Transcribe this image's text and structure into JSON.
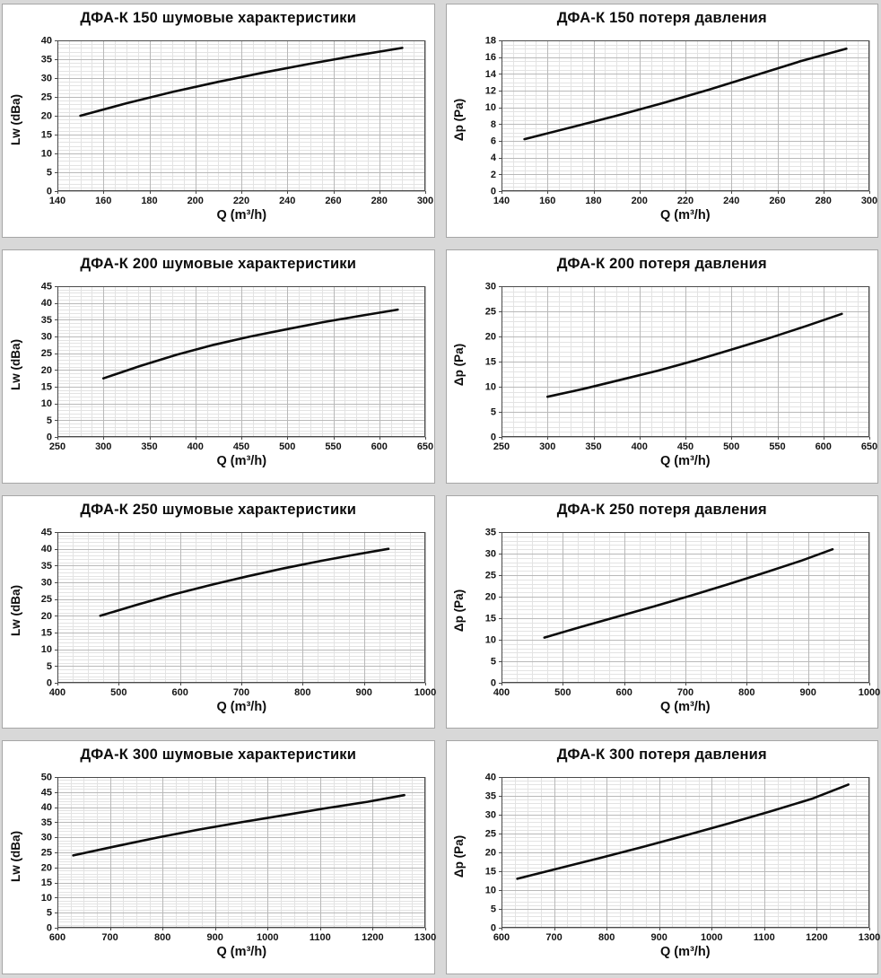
{
  "page": {
    "background": "#d8d8d8",
    "panel_background": "#ffffff",
    "panel_border": "#a6a6a6",
    "grid_minor_color": "#e3e3e3",
    "grid_major_color": "#b9b9b9",
    "axis_color": "#4a4a4a",
    "text_color": "#0d0d0d"
  },
  "chart_data": [
    {
      "name": "dfa-k-150-noise",
      "type": "line",
      "title": "ДФА-К 150 шумовые характеристики",
      "xlabel": "Q (m³/h)",
      "ylabel": "Lw (dBa)",
      "xlim": [
        140,
        300
      ],
      "ylim": [
        0,
        40
      ],
      "xmajor": 20,
      "xminor": 5,
      "ymajor": 5,
      "yminor": 1,
      "x_ticks": [
        140,
        160,
        180,
        200,
        220,
        240,
        260,
        280,
        300
      ],
      "y_ticks": [
        0,
        5,
        10,
        15,
        20,
        25,
        30,
        35,
        40
      ],
      "grid": true,
      "legend": false,
      "line_color": "#0b0b0b",
      "points": [
        [
          150,
          20
        ],
        [
          170,
          23.3
        ],
        [
          190,
          26.3
        ],
        [
          210,
          29
        ],
        [
          230,
          31.5
        ],
        [
          250,
          33.8
        ],
        [
          270,
          36
        ],
        [
          290,
          38
        ]
      ]
    },
    {
      "name": "dfa-k-150-pressure",
      "type": "line",
      "title": "ДФА-К 150 потеря давления",
      "xlabel": "Q (m³/h)",
      "ylabel": "Δp (Pa)",
      "xlim": [
        140,
        300
      ],
      "ylim": [
        0,
        18
      ],
      "xmajor": 20,
      "xminor": 5,
      "ymajor": 2,
      "yminor": 0.5,
      "x_ticks": [
        140,
        160,
        180,
        200,
        220,
        240,
        260,
        280,
        300
      ],
      "y_ticks": [
        0,
        2,
        4,
        6,
        8,
        10,
        12,
        14,
        16,
        18
      ],
      "grid": true,
      "legend": false,
      "line_color": "#0b0b0b",
      "points": [
        [
          150,
          6.2
        ],
        [
          170,
          7.6
        ],
        [
          190,
          9
        ],
        [
          210,
          10.5
        ],
        [
          230,
          12.1
        ],
        [
          250,
          13.8
        ],
        [
          270,
          15.5
        ],
        [
          290,
          17
        ]
      ]
    },
    {
      "name": "dfa-k-200-noise",
      "type": "line",
      "title": "ДФА-К 200 шумовые характеристики",
      "xlabel": "Q (m³/h)",
      "ylabel": "Lw (dBa)",
      "xlim": [
        250,
        650
      ],
      "ylim": [
        0,
        45
      ],
      "xmajor": 50,
      "xminor": 12.5,
      "ymajor": 5,
      "yminor": 1,
      "x_ticks": [
        250,
        300,
        350,
        400,
        450,
        500,
        550,
        600,
        650
      ],
      "y_ticks": [
        0,
        5,
        10,
        15,
        20,
        25,
        30,
        35,
        40,
        45
      ],
      "grid": true,
      "legend": false,
      "line_color": "#0b0b0b",
      "points": [
        [
          300,
          17.5
        ],
        [
          340,
          21.2
        ],
        [
          380,
          24.6
        ],
        [
          420,
          27.5
        ],
        [
          460,
          30
        ],
        [
          500,
          32.2
        ],
        [
          540,
          34.3
        ],
        [
          580,
          36.2
        ],
        [
          620,
          38
        ]
      ]
    },
    {
      "name": "dfa-k-200-pressure",
      "type": "line",
      "title": "ДФА-К 200 потеря давления",
      "xlabel": "Q (m³/h)",
      "ylabel": "Δp (Pa)",
      "xlim": [
        250,
        650
      ],
      "ylim": [
        0,
        30
      ],
      "xmajor": 50,
      "xminor": 12.5,
      "ymajor": 5,
      "yminor": 1,
      "x_ticks": [
        250,
        300,
        350,
        400,
        450,
        500,
        550,
        600,
        650
      ],
      "y_ticks": [
        0,
        5,
        10,
        15,
        20,
        25,
        30
      ],
      "grid": true,
      "legend": false,
      "line_color": "#0b0b0b",
      "points": [
        [
          300,
          8
        ],
        [
          340,
          9.6
        ],
        [
          380,
          11.4
        ],
        [
          420,
          13.2
        ],
        [
          460,
          15.2
        ],
        [
          500,
          17.4
        ],
        [
          540,
          19.6
        ],
        [
          580,
          22
        ],
        [
          620,
          24.5
        ]
      ]
    },
    {
      "name": "dfa-k-250-noise",
      "type": "line",
      "title": "ДФА-К 250 шумовые характеристики",
      "xlabel": "Q (m³/h)",
      "ylabel": "Lw (dBa)",
      "xlim": [
        400,
        1000
      ],
      "ylim": [
        0,
        45
      ],
      "xmajor": 100,
      "xminor": 25,
      "ymajor": 5,
      "yminor": 1,
      "x_ticks": [
        400,
        500,
        600,
        700,
        800,
        900,
        1000
      ],
      "y_ticks": [
        0,
        5,
        10,
        15,
        20,
        25,
        30,
        35,
        40,
        45
      ],
      "grid": true,
      "legend": false,
      "line_color": "#0b0b0b",
      "points": [
        [
          470,
          20
        ],
        [
          530,
          23.3
        ],
        [
          590,
          26.4
        ],
        [
          650,
          29.2
        ],
        [
          710,
          31.8
        ],
        [
          770,
          34.2
        ],
        [
          830,
          36.4
        ],
        [
          890,
          38.4
        ],
        [
          940,
          40
        ]
      ]
    },
    {
      "name": "dfa-k-250-pressure",
      "type": "line",
      "title": "ДФА-К 250 потеря давления",
      "xlabel": "Q (m³/h)",
      "ylabel": "Δp (Pa)",
      "xlim": [
        400,
        1000
      ],
      "ylim": [
        0,
        35
      ],
      "xmajor": 100,
      "xminor": 25,
      "ymajor": 5,
      "yminor": 1,
      "x_ticks": [
        400,
        500,
        600,
        700,
        800,
        900,
        1000
      ],
      "y_ticks": [
        0,
        5,
        10,
        15,
        20,
        25,
        30,
        35
      ],
      "grid": true,
      "legend": false,
      "line_color": "#0b0b0b",
      "points": [
        [
          470,
          10.5
        ],
        [
          530,
          13
        ],
        [
          590,
          15.4
        ],
        [
          650,
          17.8
        ],
        [
          710,
          20.3
        ],
        [
          770,
          22.9
        ],
        [
          830,
          25.6
        ],
        [
          890,
          28.4
        ],
        [
          940,
          31
        ]
      ]
    },
    {
      "name": "dfa-k-300-noise",
      "type": "line",
      "title": "ДФА-К 300 шумовые характеристики",
      "xlabel": "Q (m³/h)",
      "ylabel": "Lw (dBa)",
      "xlim": [
        600,
        1300
      ],
      "ylim": [
        0,
        50
      ],
      "xmajor": 100,
      "xminor": 25,
      "ymajor": 5,
      "yminor": 1,
      "x_ticks": [
        600,
        700,
        800,
        900,
        1000,
        1100,
        1200,
        1300
      ],
      "y_ticks": [
        0,
        5,
        10,
        15,
        20,
        25,
        30,
        35,
        40,
        45,
        50
      ],
      "grid": true,
      "legend": false,
      "line_color": "#0b0b0b",
      "points": [
        [
          630,
          24
        ],
        [
          710,
          27
        ],
        [
          790,
          29.9
        ],
        [
          870,
          32.6
        ],
        [
          950,
          35
        ],
        [
          1030,
          37.3
        ],
        [
          1110,
          39.6
        ],
        [
          1190,
          41.8
        ],
        [
          1260,
          44
        ]
      ]
    },
    {
      "name": "dfa-k-300-pressure",
      "type": "line",
      "title": "ДФА-К 300 потеря давления",
      "xlabel": "Q (m³/h)",
      "ylabel": "Δp (Pa)",
      "xlim": [
        600,
        1300
      ],
      "ylim": [
        0,
        40
      ],
      "xmajor": 100,
      "xminor": 25,
      "ymajor": 5,
      "yminor": 1,
      "x_ticks": [
        600,
        700,
        800,
        900,
        1000,
        1100,
        1200,
        1300
      ],
      "y_ticks": [
        0,
        5,
        10,
        15,
        20,
        25,
        30,
        35,
        40
      ],
      "grid": true,
      "legend": false,
      "line_color": "#0b0b0b",
      "points": [
        [
          630,
          13
        ],
        [
          710,
          15.8
        ],
        [
          790,
          18.6
        ],
        [
          870,
          21.5
        ],
        [
          950,
          24.5
        ],
        [
          1030,
          27.6
        ],
        [
          1110,
          30.8
        ],
        [
          1190,
          34.2
        ],
        [
          1260,
          38
        ]
      ]
    }
  ]
}
